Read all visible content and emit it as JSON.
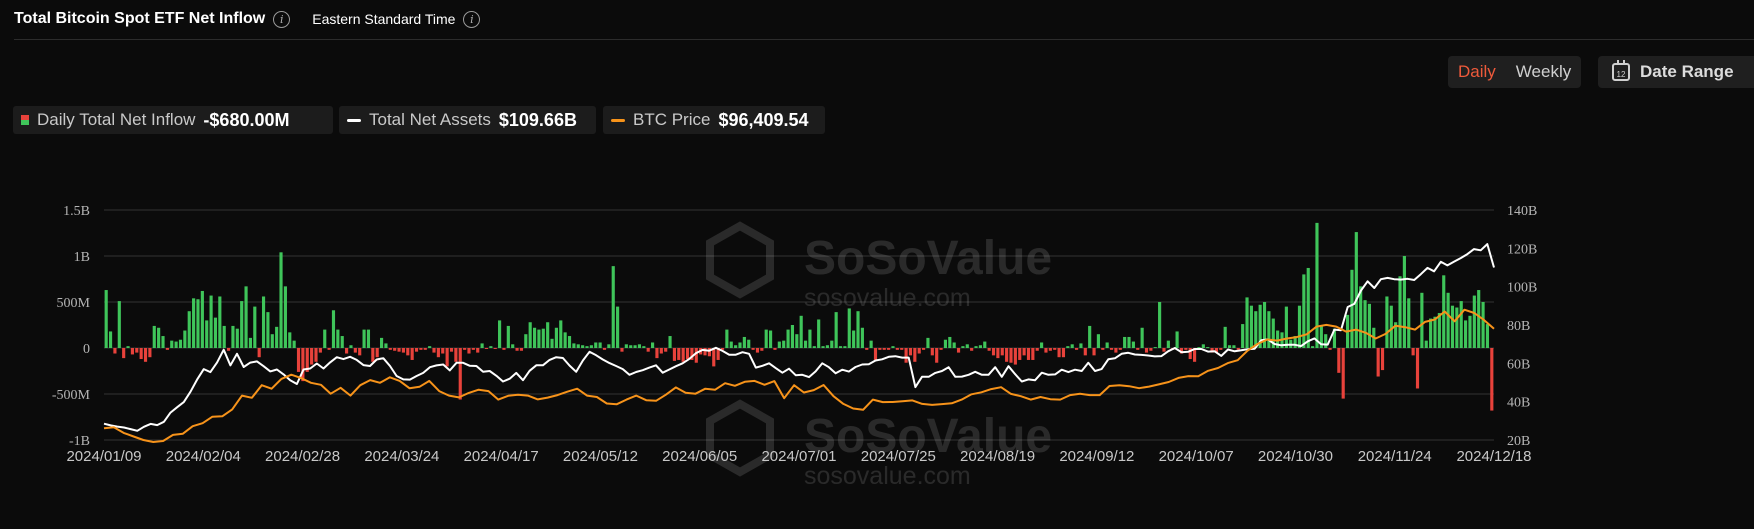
{
  "header": {
    "title": "Total Bitcoin Spot ETF Net Inflow",
    "timezone": "Eastern Standard Time",
    "info_glyph": "i"
  },
  "controls": {
    "daily": "Daily",
    "weekly": "Weekly",
    "date_range": "Date Range",
    "calendar_glyph": "12"
  },
  "legend": [
    {
      "name": "Daily Total Net Inflow",
      "value": "-$680.00M"
    },
    {
      "name": "Total Net Assets",
      "value": "$109.66B"
    },
    {
      "name": "BTC Price",
      "value": "$96,409.54"
    }
  ],
  "watermark": {
    "brand": "SoSoValue",
    "site": "sosovalue.com"
  },
  "colors": {
    "positive": "#3fc55a",
    "negative": "#e8423b",
    "net_assets": "#ffffff",
    "btc_price": "#f7931a",
    "accent": "#ee5a3b"
  },
  "chart_data": {
    "type": "bar",
    "y_left": {
      "ticks": [
        "1.5B",
        "1B",
        "500M",
        "0",
        "-500M",
        "-1B"
      ],
      "min": -1000,
      "max": 1500,
      "unit": "M"
    },
    "y_right": {
      "ticks": [
        "140B",
        "120B",
        "100B",
        "80B",
        "60B",
        "40B",
        "20B"
      ],
      "min": 20,
      "max": 140,
      "unit": "B"
    },
    "x_labels": [
      "2024/01/09",
      "2024/02/04",
      "2024/02/28",
      "2024/03/24",
      "2024/04/17",
      "2024/05/12",
      "2024/06/05",
      "2024/07/01",
      "2024/07/25",
      "2024/08/19",
      "2024/09/12",
      "2024/10/07",
      "2024/10/30",
      "2024/11/24",
      "2024/12/18"
    ],
    "series": [
      {
        "name": "Daily Total Net Inflow",
        "type": "bar",
        "values": [
          630,
          180,
          -60,
          510,
          -110,
          20,
          -70,
          -50,
          -120,
          -150,
          -100,
          240,
          220,
          130,
          -20,
          80,
          70,
          90,
          190,
          400,
          540,
          530,
          620,
          300,
          570,
          330,
          560,
          240,
          -30,
          240,
          210,
          510,
          670,
          110,
          450,
          -100,
          560,
          390,
          150,
          230,
          1040,
          670,
          170,
          80,
          -260,
          -360,
          -260,
          -180,
          -150,
          -50,
          200,
          -20,
          410,
          200,
          130,
          -60,
          30,
          -50,
          -80,
          200,
          200,
          -150,
          -100,
          110,
          50,
          -20,
          -30,
          -40,
          -50,
          -80,
          -130,
          -40,
          -20,
          -20,
          20,
          -50,
          -100,
          -60,
          -200,
          -40,
          -150,
          -560,
          -20,
          -60,
          -20,
          -50,
          50,
          -10,
          20,
          -10,
          300,
          -20,
          240,
          40,
          -30,
          -30,
          150,
          280,
          220,
          200,
          210,
          280,
          100,
          220,
          300,
          170,
          130,
          50,
          40,
          30,
          20,
          30,
          60,
          60,
          -20,
          40,
          890,
          450,
          -40,
          40,
          30,
          30,
          40,
          20,
          -40,
          60,
          -110,
          -60,
          -40,
          130,
          -140,
          -130,
          -150,
          -120,
          -130,
          -160,
          -70,
          -80,
          -90,
          -200,
          -130,
          -20,
          200,
          70,
          30,
          60,
          120,
          90,
          -20,
          -50,
          -30,
          200,
          190,
          -20,
          70,
          80,
          200,
          250,
          150,
          350,
          80,
          200,
          20,
          310,
          20,
          30,
          80,
          390,
          20,
          20,
          430,
          190,
          400,
          220,
          -20,
          80,
          -130,
          -20,
          -20,
          -20,
          20,
          -20,
          -20,
          -160,
          -80,
          -150,
          -60,
          -20,
          110,
          -80,
          -160,
          -20,
          90,
          120,
          60,
          -50,
          20,
          40,
          -30,
          20,
          30,
          70,
          -30,
          -80,
          -110,
          -80,
          -150,
          -160,
          -180,
          -130,
          -80,
          -130,
          -130,
          -30,
          60,
          -50,
          -30,
          -20,
          -100,
          -100,
          20,
          40,
          -20,
          50,
          -80,
          240,
          -80,
          150,
          -20,
          60,
          -20,
          -50,
          -20,
          120,
          120,
          70,
          -20,
          220,
          -50,
          -30,
          10,
          500,
          -40,
          80,
          -20,
          180,
          -60,
          -20,
          -120,
          -150,
          10,
          40,
          10,
          -50,
          -50,
          -20,
          230,
          30,
          30,
          -20,
          260,
          550,
          460,
          400,
          470,
          500,
          400,
          320,
          190,
          170,
          450,
          90,
          130,
          460,
          800,
          870,
          20,
          1360,
          250,
          150,
          -20,
          210,
          -270,
          -550,
          360,
          850,
          1260,
          670,
          520,
          480,
          220,
          -310,
          -240,
          560,
          460,
          280,
          780,
          1000,
          540,
          -80,
          -440,
          600,
          80,
          320,
          340,
          380,
          790,
          600,
          460,
          440,
          510,
          300,
          350,
          570,
          630,
          500,
          260,
          -680
        ]
      },
      {
        "name": "Total Net Assets",
        "type": "line",
        "unit": "B",
        "values": [
          28.5,
          27.6,
          27.0,
          26.5,
          25.7,
          24.8,
          26.9,
          28.4,
          27.8,
          29.5,
          34.3,
          37.1,
          39.8,
          45.2,
          51.5,
          57.0,
          55.4,
          60.5,
          67.1,
          58.9,
          65.0,
          58.1,
          60.4,
          61.0,
          58.5,
          55.8,
          56.8,
          54.2,
          51.2,
          49.2,
          56.8,
          57.3,
          59.9,
          57.3,
          60.5,
          63.2,
          62.2,
          63.4,
          61.8,
          59.1,
          58.6,
          62.0,
          62.7,
          58.6,
          53.4,
          51.6,
          51.5,
          53.4,
          55.0,
          58.0,
          58.9,
          59.4,
          56.3,
          60.3,
          60.3,
          58.7,
          58.6,
          55.6,
          56.0,
          53.5,
          50.5,
          52.0,
          55.0,
          51.2,
          56.1,
          59.0,
          59.0,
          61.8,
          63.2,
          62.8,
          58.8,
          55.6,
          61.5,
          66.0,
          64.2,
          62.0,
          60.1,
          58.6,
          57.0,
          54.0,
          55.5,
          56.4,
          57.8,
          59.0,
          55.1,
          56.8,
          58.5,
          60.0,
          62.3,
          65.3,
          67.0,
          66.6,
          68.1,
          66.5,
          64.5,
          64.5,
          65.8,
          65.0,
          57.8,
          58.7,
          60.0,
          57.5,
          55.1,
          57.2,
          53.8,
          54.0,
          52.8,
          55.8,
          60.0,
          58.0,
          54.8,
          56.7,
          55.7,
          58.1,
          59.4,
          59.5,
          61.5,
          62.1,
          63.4,
          63.7,
          63.0,
          63.0,
          47.6,
          53.0,
          53.0,
          55.0,
          56.0,
          58.0,
          53.0,
          53.1,
          54.0,
          55.6,
          54.0,
          54.0,
          58.0,
          53.0,
          58.5,
          54.4,
          50.5,
          51.6,
          51.2,
          55.1,
          54.0,
          54.2,
          56.7,
          55.4,
          56.7,
          56.0,
          60.3,
          56.0,
          57.0,
          62.1,
          62.6,
          65.0,
          65.5,
          64.6,
          64.4,
          64.1,
          63.6,
          63.8,
          66.3,
          68.0,
          65.8,
          66.0,
          67.5,
          67.5,
          66.1,
          66.3,
          63.9,
          67.2,
          66.3,
          66.8,
          67.4,
          67.6,
          72.0,
          72.5,
          70.1,
          69.4,
          69.7,
          69.7,
          69.0,
          71.5,
          73.0,
          70.0,
          69.8,
          77.6,
          77.3,
          89.4,
          91.0,
          98.0,
          102.8,
          99.3,
          103.9,
          104.6,
          103.9,
          103.7,
          104.1,
          103.5,
          106.5,
          109.8,
          108.0,
          113.0,
          111.1,
          113.1,
          114.9,
          117.0,
          119.6,
          119.0,
          122.2,
          110.0
        ]
      },
      {
        "name": "BTC Price",
        "type": "line",
        "unit": "USD",
        "values": [
          46000,
          46500,
          43600,
          41800,
          40000,
          39000,
          39500,
          42600,
          43200,
          47000,
          48500,
          51800,
          52000,
          55500,
          62500,
          61400,
          67800,
          66000,
          71000,
          73100,
          71400,
          69000,
          68000,
          63500,
          66500,
          62500,
          67800,
          70400,
          69000,
          71800,
          70000,
          66200,
          67000,
          70000,
          64800,
          62500,
          61600,
          63900,
          65500,
          64800,
          60500,
          62400,
          63000,
          62500,
          60600,
          61500,
          62800,
          64500,
          66000,
          62500,
          61800,
          58500,
          58100,
          60500,
          62500,
          60200,
          59900,
          63000,
          66700,
          64000,
          63500,
          66000,
          65500,
          68800,
          67500,
          69500,
          70000,
          68000,
          69900,
          61200,
          67800,
          64100,
          65300,
          67900,
          62200,
          58300,
          56000,
          55300,
          60500,
          59200,
          59300,
          59700,
          60100,
          58300,
          57800,
          58200,
          58600,
          60500,
          63200,
          64200,
          65800,
          66800,
          63400,
          62200,
          60500,
          61800,
          60700,
          60500,
          62800,
          63500,
          62800,
          62800,
          67400,
          67800,
          67300,
          66300,
          67100,
          68200,
          69400,
          71500,
          72400,
          72300,
          75100,
          76500,
          79000,
          80500,
          85300,
          88700,
          91000,
          90400,
          91500,
          92200,
          93600,
          97500,
          98400,
          97500,
          95000,
          96000,
          94400,
          91500,
          93800,
          98000,
          97200,
          96000,
          99900,
          101100,
          105200,
          100200,
          106100,
          104400,
          100800,
          96409
        ]
      }
    ]
  }
}
